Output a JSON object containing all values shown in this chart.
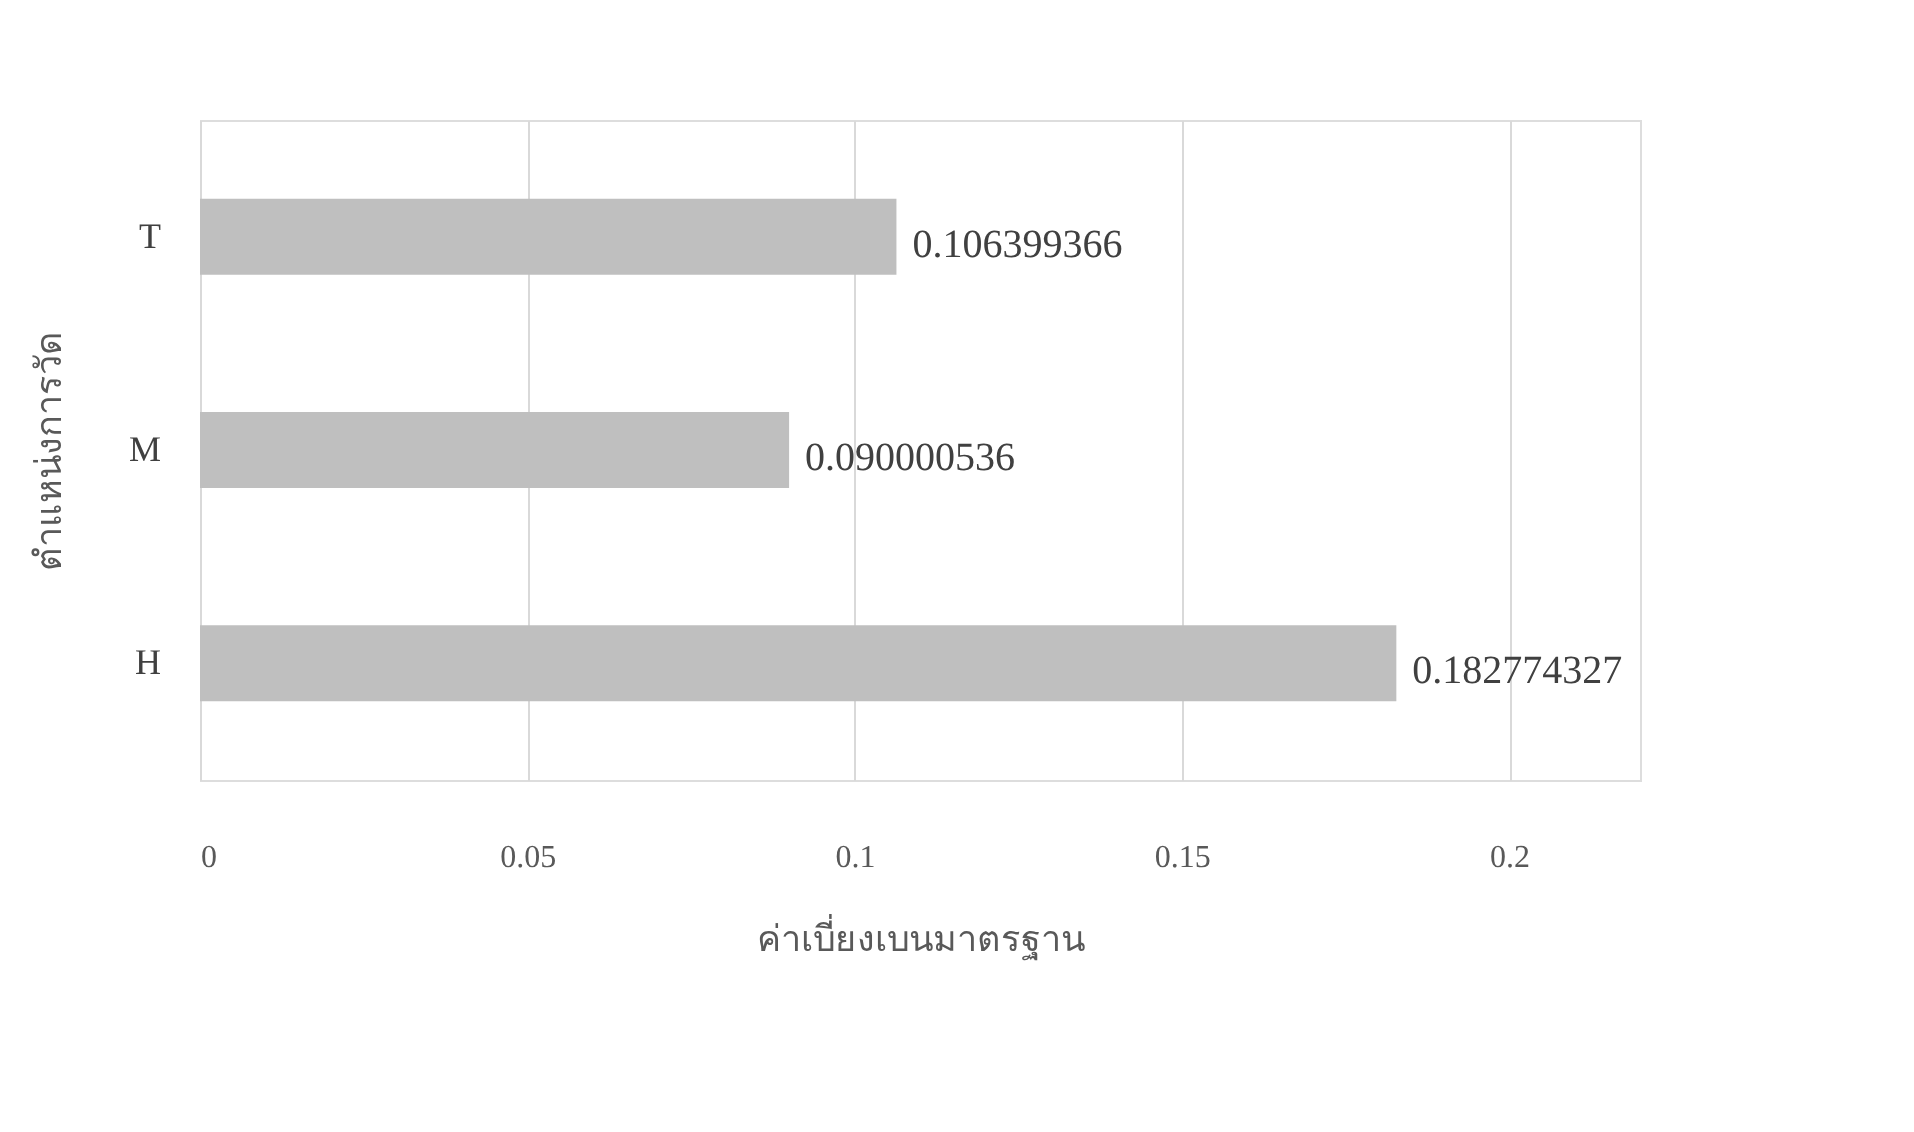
{
  "chart_data": {
    "type": "bar",
    "orientation": "horizontal",
    "xlabel": "ค่าเบี่ยงเบนมาตรฐาน",
    "ylabel": "ตำแหน่งการวัด",
    "categories": [
      "T",
      "M",
      "H"
    ],
    "values": [
      0.106399366,
      0.090000536,
      0.182774327
    ],
    "color": "#bfbfbf",
    "xlim": [
      0,
      0.22
    ],
    "xticks": [
      0,
      0.05,
      0.1,
      0.15,
      0.2
    ],
    "grid": "x",
    "data_labels": true
  }
}
